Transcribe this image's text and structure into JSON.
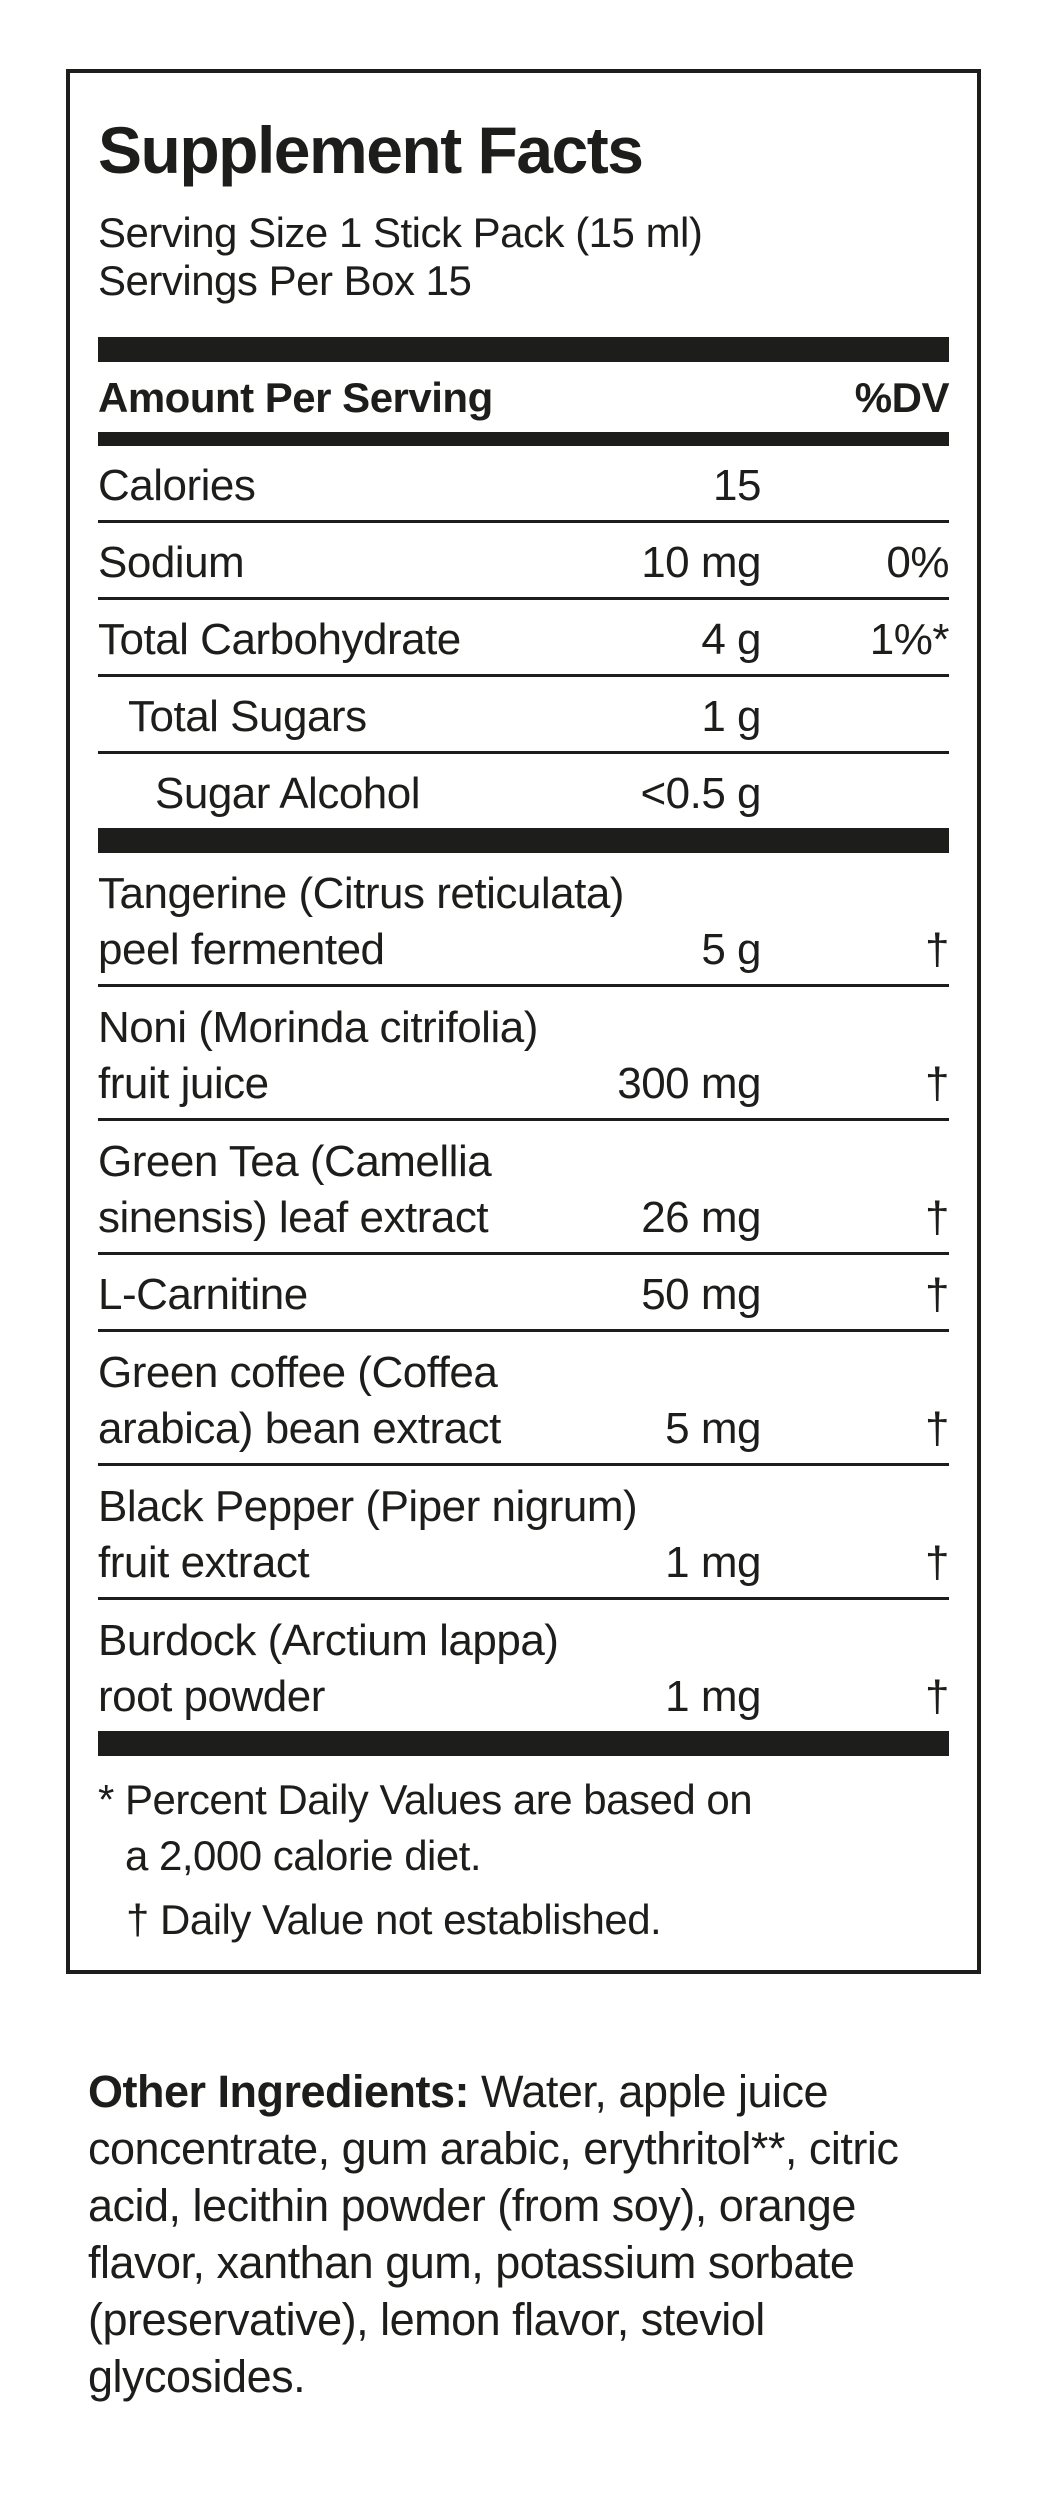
{
  "colors": {
    "ink": "#1d1d1b",
    "background": "#ffffff"
  },
  "supplement_facts": {
    "title": "Supplement Facts",
    "serving_size": "Serving Size 1 Stick Pack (15 ml)",
    "servings_per_box": "Servings Per Box 15",
    "header": {
      "amount_label": "Amount Per Serving",
      "dv_label": "%DV"
    },
    "nutrients": [
      {
        "name": "Calories",
        "amount": "15",
        "dv": ""
      },
      {
        "name": "Sodium",
        "amount": "10 mg",
        "dv": "0%"
      },
      {
        "name": "Total Carbohydrate",
        "amount": "4 g",
        "dv": "1%*"
      },
      {
        "name": "Total Sugars",
        "amount": "1 g",
        "dv": ""
      },
      {
        "name": "Sugar Alcohol",
        "amount": "<0.5 g",
        "dv": ""
      }
    ],
    "botanicals": [
      {
        "line1": "Tangerine (Citrus reticulata)",
        "line2": "peel fermented",
        "amount": "5 g",
        "dv": "†"
      },
      {
        "line1": "Noni (Morinda citrifolia)",
        "line2": "fruit juice",
        "amount": "300 mg",
        "dv": "†"
      },
      {
        "line1": "Green Tea (Camellia",
        "line2": "sinensis) leaf extract",
        "amount": "26 mg",
        "dv": "†"
      },
      {
        "line1": "L-Carnitine",
        "line2": "",
        "amount": "50 mg",
        "dv": "†"
      },
      {
        "line1": "Green coffee (Coffea",
        "line2": "arabica) bean extract",
        "amount": "5 mg",
        "dv": "†"
      },
      {
        "line1": "Black Pepper (Piper nigrum)",
        "line2": "fruit extract",
        "amount": "1 mg",
        "dv": "†"
      },
      {
        "line1": "Burdock (Arctium lappa)",
        "line2": "root powder",
        "amount": "1 mg",
        "dv": "†"
      }
    ],
    "footnotes": {
      "percent_line1": "* Percent Daily Values are based on",
      "percent_line2": "a 2,000 calorie diet.",
      "dagger": "† Daily Value not established."
    }
  },
  "other_ingredients": {
    "lead": "Other Ingredients: ",
    "text": "Water, apple juice concentrate, gum arabic, erythritol**, citric acid, lecithin powder (from soy), orange flavor, xanthan gum, potassium sorbate (preservative), lemon flavor, steviol glycosides."
  }
}
